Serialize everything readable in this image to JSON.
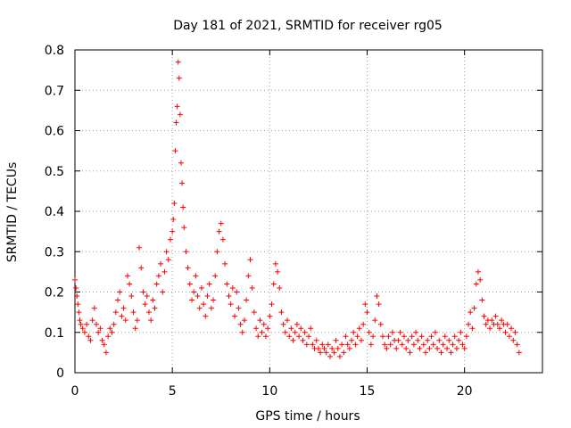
{
  "chart_data": {
    "type": "scatter",
    "title": "Day 181 of 2021, SRMTID for receiver rg05",
    "xlabel": "GPS time / hours",
    "ylabel": "SRMTID / TECUs",
    "xlim": [
      0,
      24
    ],
    "ylim": [
      0,
      0.8
    ],
    "x_ticks": [
      0,
      5,
      10,
      15,
      20
    ],
    "y_ticks": [
      0,
      0.1,
      0.2,
      0.3,
      0.4,
      0.5,
      0.6,
      0.7,
      0.8
    ],
    "x_tick_labels": [
      "0",
      "5",
      "10",
      "15",
      "20"
    ],
    "y_tick_labels": [
      "0",
      "0.1",
      "0.2",
      "0.3",
      "0.4",
      "0.5",
      "0.6",
      "0.7",
      "0.8"
    ],
    "grid": true,
    "marker": "+",
    "series": [
      {
        "name": "SRMTID",
        "color": "#ff0000",
        "points": [
          [
            0.0,
            0.23
          ],
          [
            0.05,
            0.21
          ],
          [
            0.1,
            0.19
          ],
          [
            0.15,
            0.17
          ],
          [
            0.2,
            0.15
          ],
          [
            0.25,
            0.13
          ],
          [
            0.3,
            0.12
          ],
          [
            0.4,
            0.11
          ],
          [
            0.5,
            0.1
          ],
          [
            0.6,
            0.12
          ],
          [
            0.7,
            0.09
          ],
          [
            0.8,
            0.08
          ],
          [
            0.9,
            0.13
          ],
          [
            1.0,
            0.16
          ],
          [
            1.1,
            0.12
          ],
          [
            1.2,
            0.1
          ],
          [
            1.3,
            0.11
          ],
          [
            1.4,
            0.08
          ],
          [
            1.5,
            0.07
          ],
          [
            1.6,
            0.05
          ],
          [
            1.7,
            0.09
          ],
          [
            1.8,
            0.11
          ],
          [
            1.9,
            0.1
          ],
          [
            2.0,
            0.12
          ],
          [
            2.1,
            0.15
          ],
          [
            2.2,
            0.18
          ],
          [
            2.3,
            0.2
          ],
          [
            2.4,
            0.14
          ],
          [
            2.5,
            0.16
          ],
          [
            2.6,
            0.13
          ],
          [
            2.7,
            0.24
          ],
          [
            2.8,
            0.22
          ],
          [
            2.9,
            0.19
          ],
          [
            3.0,
            0.15
          ],
          [
            3.1,
            0.11
          ],
          [
            3.2,
            0.13
          ],
          [
            3.3,
            0.31
          ],
          [
            3.4,
            0.26
          ],
          [
            3.5,
            0.2
          ],
          [
            3.6,
            0.17
          ],
          [
            3.7,
            0.19
          ],
          [
            3.8,
            0.15
          ],
          [
            3.9,
            0.13
          ],
          [
            4.0,
            0.18
          ],
          [
            4.1,
            0.16
          ],
          [
            4.2,
            0.22
          ],
          [
            4.3,
            0.24
          ],
          [
            4.4,
            0.27
          ],
          [
            4.5,
            0.2
          ],
          [
            4.6,
            0.25
          ],
          [
            4.7,
            0.3
          ],
          [
            4.8,
            0.28
          ],
          [
            4.9,
            0.33
          ],
          [
            5.0,
            0.35
          ],
          [
            5.05,
            0.38
          ],
          [
            5.1,
            0.42
          ],
          [
            5.15,
            0.55
          ],
          [
            5.2,
            0.62
          ],
          [
            5.25,
            0.66
          ],
          [
            5.3,
            0.77
          ],
          [
            5.35,
            0.73
          ],
          [
            5.4,
            0.64
          ],
          [
            5.45,
            0.52
          ],
          [
            5.5,
            0.47
          ],
          [
            5.55,
            0.41
          ],
          [
            5.6,
            0.36
          ],
          [
            5.7,
            0.3
          ],
          [
            5.8,
            0.26
          ],
          [
            5.9,
            0.22
          ],
          [
            6.0,
            0.18
          ],
          [
            6.1,
            0.2
          ],
          [
            6.2,
            0.24
          ],
          [
            6.3,
            0.19
          ],
          [
            6.4,
            0.16
          ],
          [
            6.5,
            0.21
          ],
          [
            6.6,
            0.17
          ],
          [
            6.7,
            0.14
          ],
          [
            6.8,
            0.19
          ],
          [
            6.9,
            0.22
          ],
          [
            7.0,
            0.16
          ],
          [
            7.1,
            0.18
          ],
          [
            7.2,
            0.24
          ],
          [
            7.3,
            0.3
          ],
          [
            7.4,
            0.35
          ],
          [
            7.5,
            0.37
          ],
          [
            7.6,
            0.33
          ],
          [
            7.7,
            0.27
          ],
          [
            7.8,
            0.22
          ],
          [
            7.9,
            0.19
          ],
          [
            8.0,
            0.17
          ],
          [
            8.1,
            0.21
          ],
          [
            8.2,
            0.14
          ],
          [
            8.3,
            0.2
          ],
          [
            8.4,
            0.16
          ],
          [
            8.5,
            0.12
          ],
          [
            8.6,
            0.1
          ],
          [
            8.7,
            0.13
          ],
          [
            8.8,
            0.18
          ],
          [
            8.9,
            0.24
          ],
          [
            9.0,
            0.28
          ],
          [
            9.1,
            0.21
          ],
          [
            9.2,
            0.15
          ],
          [
            9.3,
            0.11
          ],
          [
            9.4,
            0.09
          ],
          [
            9.5,
            0.13
          ],
          [
            9.6,
            0.1
          ],
          [
            9.7,
            0.12
          ],
          [
            9.8,
            0.09
          ],
          [
            9.9,
            0.11
          ],
          [
            10.0,
            0.14
          ],
          [
            10.1,
            0.17
          ],
          [
            10.2,
            0.22
          ],
          [
            10.3,
            0.27
          ],
          [
            10.4,
            0.25
          ],
          [
            10.5,
            0.21
          ],
          [
            10.6,
            0.15
          ],
          [
            10.7,
            0.12
          ],
          [
            10.8,
            0.1
          ],
          [
            10.9,
            0.13
          ],
          [
            11.0,
            0.09
          ],
          [
            11.1,
            0.11
          ],
          [
            11.2,
            0.08
          ],
          [
            11.3,
            0.1
          ],
          [
            11.4,
            0.12
          ],
          [
            11.5,
            0.09
          ],
          [
            11.6,
            0.11
          ],
          [
            11.7,
            0.08
          ],
          [
            11.8,
            0.1
          ],
          [
            11.9,
            0.07
          ],
          [
            12.0,
            0.09
          ],
          [
            12.1,
            0.11
          ],
          [
            12.2,
            0.07
          ],
          [
            12.3,
            0.06
          ],
          [
            12.4,
            0.08
          ],
          [
            12.5,
            0.06
          ],
          [
            12.6,
            0.05
          ],
          [
            12.7,
            0.07
          ],
          [
            12.8,
            0.06
          ],
          [
            12.9,
            0.05
          ],
          [
            13.0,
            0.07
          ],
          [
            13.1,
            0.04
          ],
          [
            13.2,
            0.06
          ],
          [
            13.3,
            0.05
          ],
          [
            13.4,
            0.08
          ],
          [
            13.5,
            0.06
          ],
          [
            13.6,
            0.04
          ],
          [
            13.7,
            0.07
          ],
          [
            13.8,
            0.05
          ],
          [
            13.9,
            0.09
          ],
          [
            14.0,
            0.07
          ],
          [
            14.1,
            0.06
          ],
          [
            14.2,
            0.08
          ],
          [
            14.3,
            0.1
          ],
          [
            14.4,
            0.07
          ],
          [
            14.5,
            0.09
          ],
          [
            14.6,
            0.11
          ],
          [
            14.7,
            0.08
          ],
          [
            14.8,
            0.12
          ],
          [
            14.9,
            0.17
          ],
          [
            15.0,
            0.15
          ],
          [
            15.1,
            0.1
          ],
          [
            15.2,
            0.07
          ],
          [
            15.3,
            0.09
          ],
          [
            15.4,
            0.13
          ],
          [
            15.5,
            0.19
          ],
          [
            15.6,
            0.17
          ],
          [
            15.7,
            0.12
          ],
          [
            15.8,
            0.09
          ],
          [
            15.9,
            0.07
          ],
          [
            16.0,
            0.06
          ],
          [
            16.1,
            0.09
          ],
          [
            16.2,
            0.07
          ],
          [
            16.3,
            0.1
          ],
          [
            16.4,
            0.08
          ],
          [
            16.5,
            0.06
          ],
          [
            16.6,
            0.08
          ],
          [
            16.7,
            0.1
          ],
          [
            16.8,
            0.07
          ],
          [
            16.9,
            0.09
          ],
          [
            17.0,
            0.06
          ],
          [
            17.1,
            0.08
          ],
          [
            17.2,
            0.05
          ],
          [
            17.3,
            0.09
          ],
          [
            17.4,
            0.07
          ],
          [
            17.5,
            0.1
          ],
          [
            17.6,
            0.08
          ],
          [
            17.7,
            0.06
          ],
          [
            17.8,
            0.09
          ],
          [
            17.9,
            0.07
          ],
          [
            18.0,
            0.05
          ],
          [
            18.1,
            0.08
          ],
          [
            18.2,
            0.06
          ],
          [
            18.3,
            0.09
          ],
          [
            18.4,
            0.07
          ],
          [
            18.5,
            0.1
          ],
          [
            18.6,
            0.06
          ],
          [
            18.7,
            0.08
          ],
          [
            18.8,
            0.05
          ],
          [
            18.9,
            0.07
          ],
          [
            19.0,
            0.09
          ],
          [
            19.1,
            0.06
          ],
          [
            19.2,
            0.08
          ],
          [
            19.3,
            0.05
          ],
          [
            19.4,
            0.07
          ],
          [
            19.5,
            0.09
          ],
          [
            19.6,
            0.06
          ],
          [
            19.7,
            0.08
          ],
          [
            19.8,
            0.1
          ],
          [
            19.9,
            0.07
          ],
          [
            20.0,
            0.06
          ],
          [
            20.1,
            0.09
          ],
          [
            20.2,
            0.12
          ],
          [
            20.3,
            0.15
          ],
          [
            20.4,
            0.11
          ],
          [
            20.5,
            0.16
          ],
          [
            20.6,
            0.22
          ],
          [
            20.7,
            0.25
          ],
          [
            20.8,
            0.23
          ],
          [
            20.9,
            0.18
          ],
          [
            21.0,
            0.14
          ],
          [
            21.1,
            0.12
          ],
          [
            21.2,
            0.13
          ],
          [
            21.3,
            0.11
          ],
          [
            21.4,
            0.13
          ],
          [
            21.5,
            0.12
          ],
          [
            21.6,
            0.14
          ],
          [
            21.7,
            0.12
          ],
          [
            21.8,
            0.11
          ],
          [
            21.9,
            0.13
          ],
          [
            22.0,
            0.12
          ],
          [
            22.1,
            0.1
          ],
          [
            22.2,
            0.12
          ],
          [
            22.3,
            0.09
          ],
          [
            22.4,
            0.11
          ],
          [
            22.5,
            0.08
          ],
          [
            22.6,
            0.1
          ],
          [
            22.7,
            0.07
          ],
          [
            22.8,
            0.05
          ]
        ]
      }
    ]
  }
}
